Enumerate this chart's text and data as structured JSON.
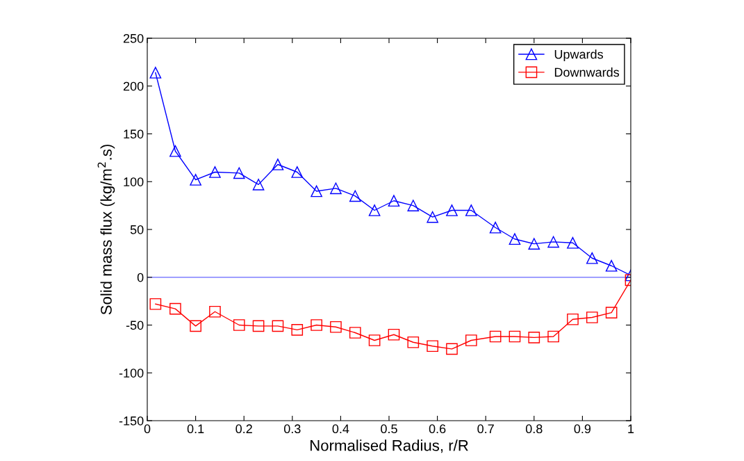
{
  "chart_data": {
    "type": "line",
    "xlabel": "Normalised Radius, r/R",
    "ylabel": "Solid mass flux (kg/m$^{2}$.s)",
    "x": [
      0.017,
      0.058,
      0.1,
      0.14,
      0.19,
      0.23,
      0.27,
      0.31,
      0.35,
      0.39,
      0.43,
      0.47,
      0.51,
      0.55,
      0.59,
      0.63,
      0.67,
      0.72,
      0.76,
      0.8,
      0.84,
      0.88,
      0.92,
      0.96,
      1.0
    ],
    "series": [
      {
        "name": "Upwards",
        "color": "#0000ff",
        "marker": "triangle",
        "values": [
          214,
          132,
          102,
          110,
          109,
          97,
          118,
          110,
          90,
          93,
          85,
          70,
          80,
          75,
          63,
          70,
          70,
          52,
          40,
          35,
          37,
          36,
          20,
          12,
          2
        ]
      },
      {
        "name": "Downwards",
        "color": "#ff0000",
        "marker": "square",
        "values": [
          -28,
          -33,
          -51,
          -36,
          -50,
          -51,
          -51,
          -55,
          -50,
          -52,
          -58,
          -66,
          -60,
          -68,
          -72,
          -75,
          -66,
          -62,
          -62,
          -63,
          -62,
          -44,
          -42,
          -37,
          -3
        ]
      }
    ],
    "xlim": [
      0,
      1
    ],
    "xticks": [
      0,
      0.1,
      0.2,
      0.3,
      0.4,
      0.5,
      0.6,
      0.7,
      0.8,
      0.9,
      1
    ],
    "ylim": [
      -150,
      250
    ],
    "yticks": [
      -150,
      -100,
      -50,
      0,
      50,
      100,
      150,
      200,
      250
    ],
    "ref_lines": [
      {
        "axis": "y",
        "value": 0,
        "color": "#8080ff"
      }
    ],
    "legend": "top right",
    "grid": false,
    "line_style": "solid"
  }
}
